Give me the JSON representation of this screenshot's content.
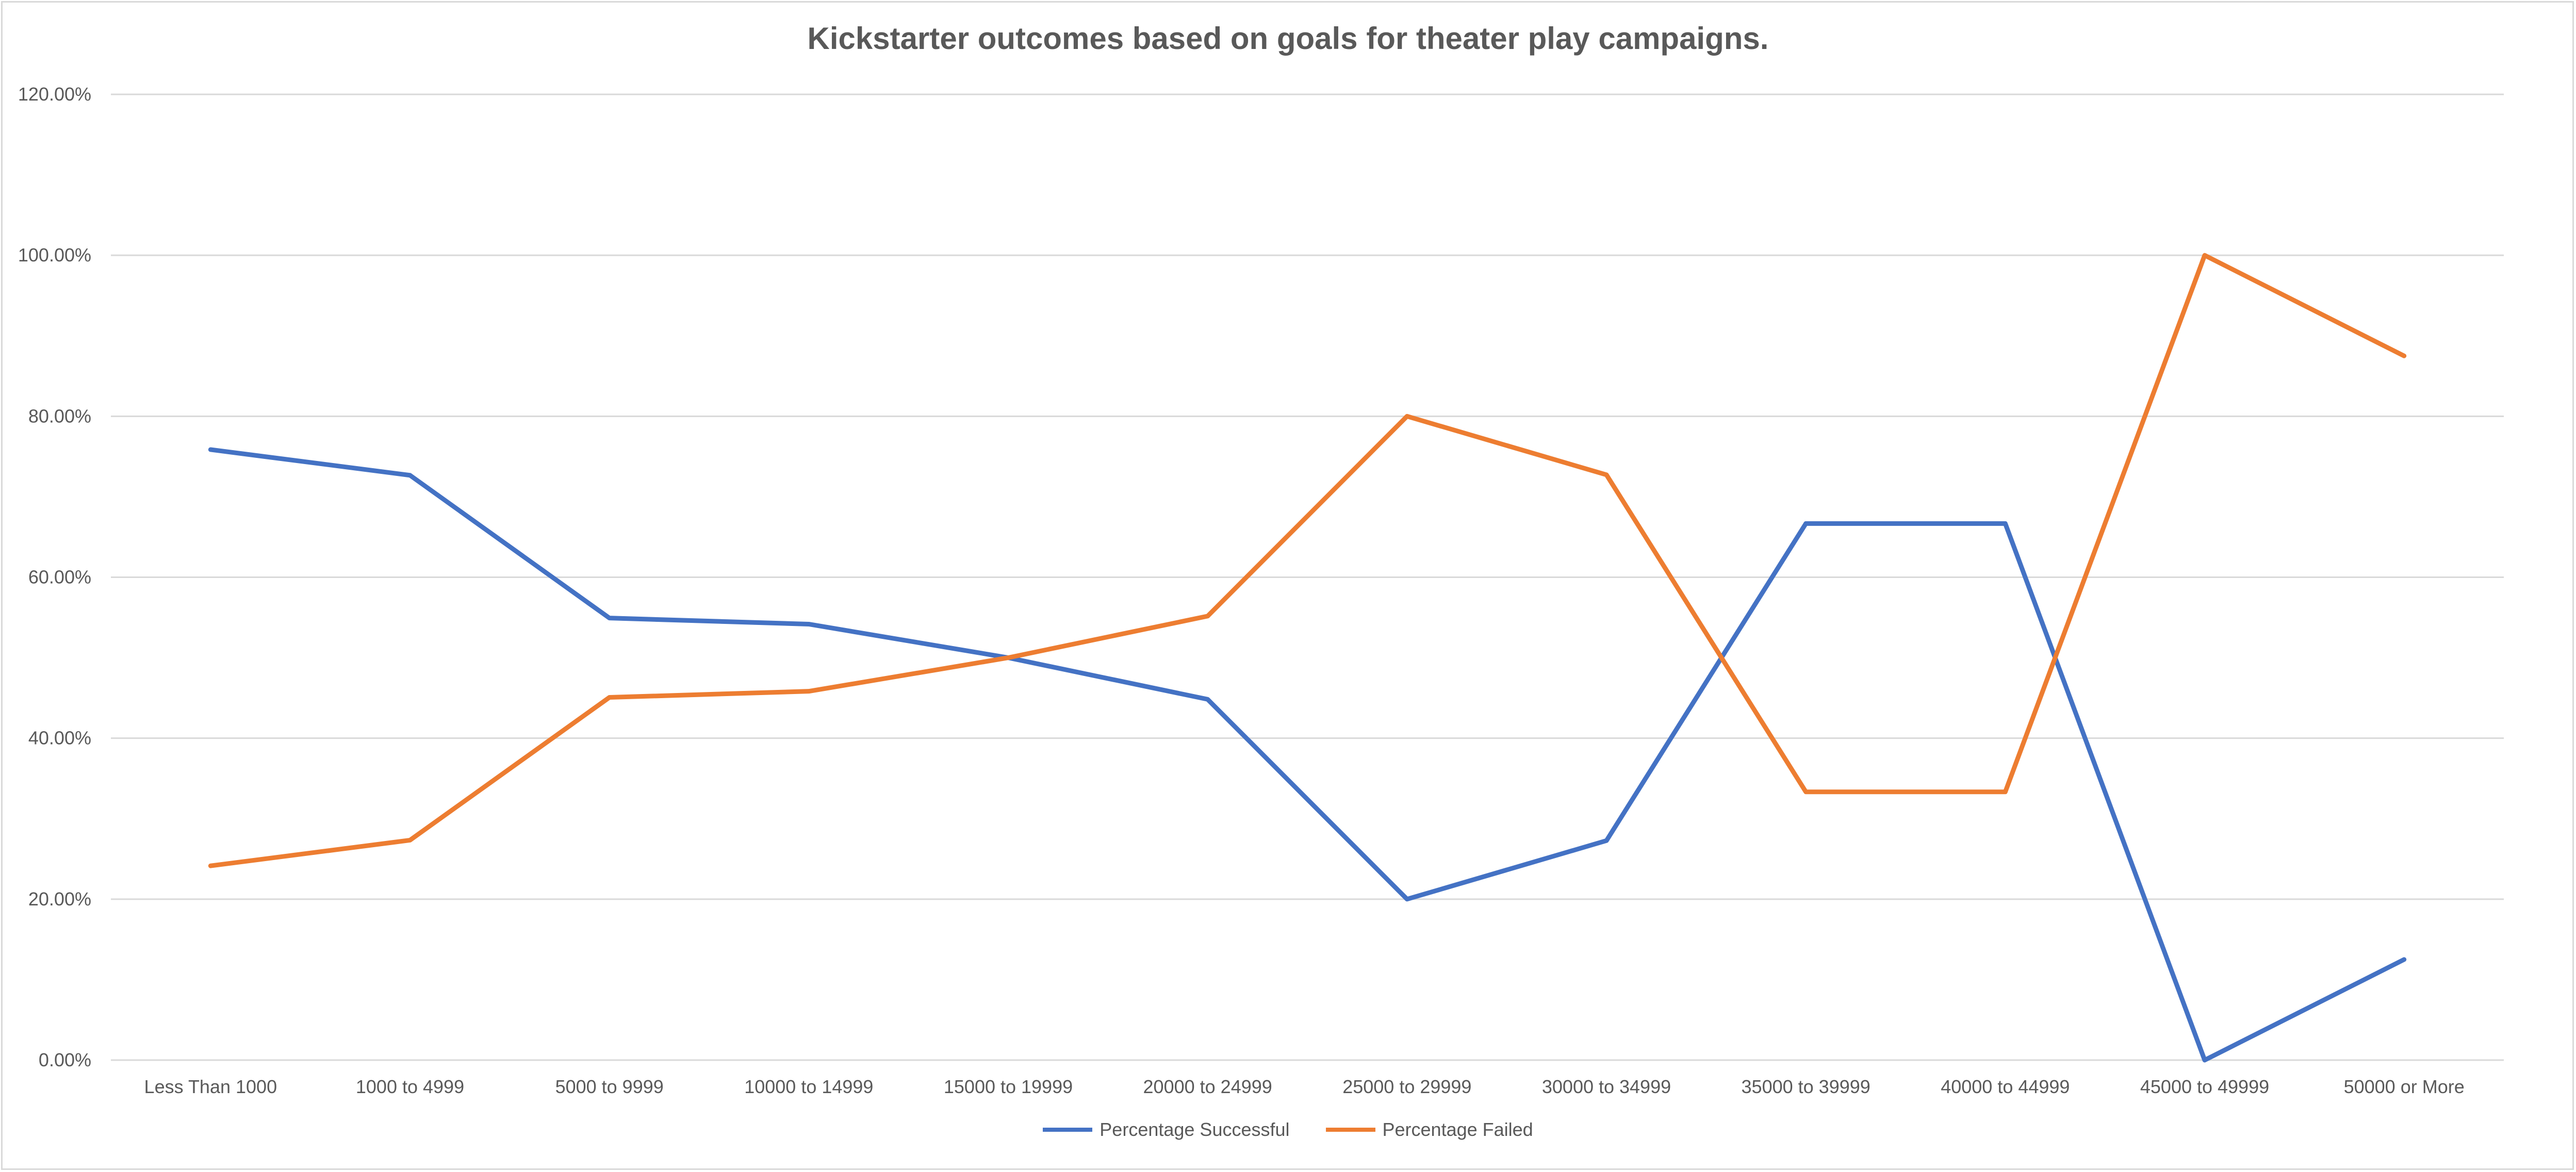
{
  "chart_data": {
    "type": "line",
    "title": "Kickstarter outcomes based on goals for theater play campaigns.",
    "categories": [
      "Less Than 1000",
      "1000 to 4999",
      "5000 to 9999",
      "10000 to 14999",
      "15000 to 19999",
      "20000 to 24999",
      "25000 to 29999",
      "30000 to 34999",
      "35000 to 39999",
      "40000 to 44999",
      "45000 to 49999",
      "50000 or More"
    ],
    "series": [
      {
        "name": "Percentage Successful",
        "color": "#4472c4",
        "values": [
          75.86,
          72.67,
          54.93,
          54.17,
          50.0,
          44.83,
          20.0,
          27.27,
          66.67,
          66.67,
          0.0,
          12.5
        ]
      },
      {
        "name": "Percentage Failed",
        "color": "#ed7d31",
        "values": [
          24.14,
          27.33,
          45.07,
          45.83,
          50.0,
          55.17,
          80.0,
          72.73,
          33.33,
          33.33,
          100.0,
          87.5
        ]
      }
    ],
    "yticks": [
      "0.00%",
      "20.00%",
      "40.00%",
      "60.00%",
      "80.00%",
      "100.00%",
      "120.00%"
    ],
    "ylim": [
      0,
      120
    ],
    "grid": true,
    "legend_position": "bottom"
  }
}
